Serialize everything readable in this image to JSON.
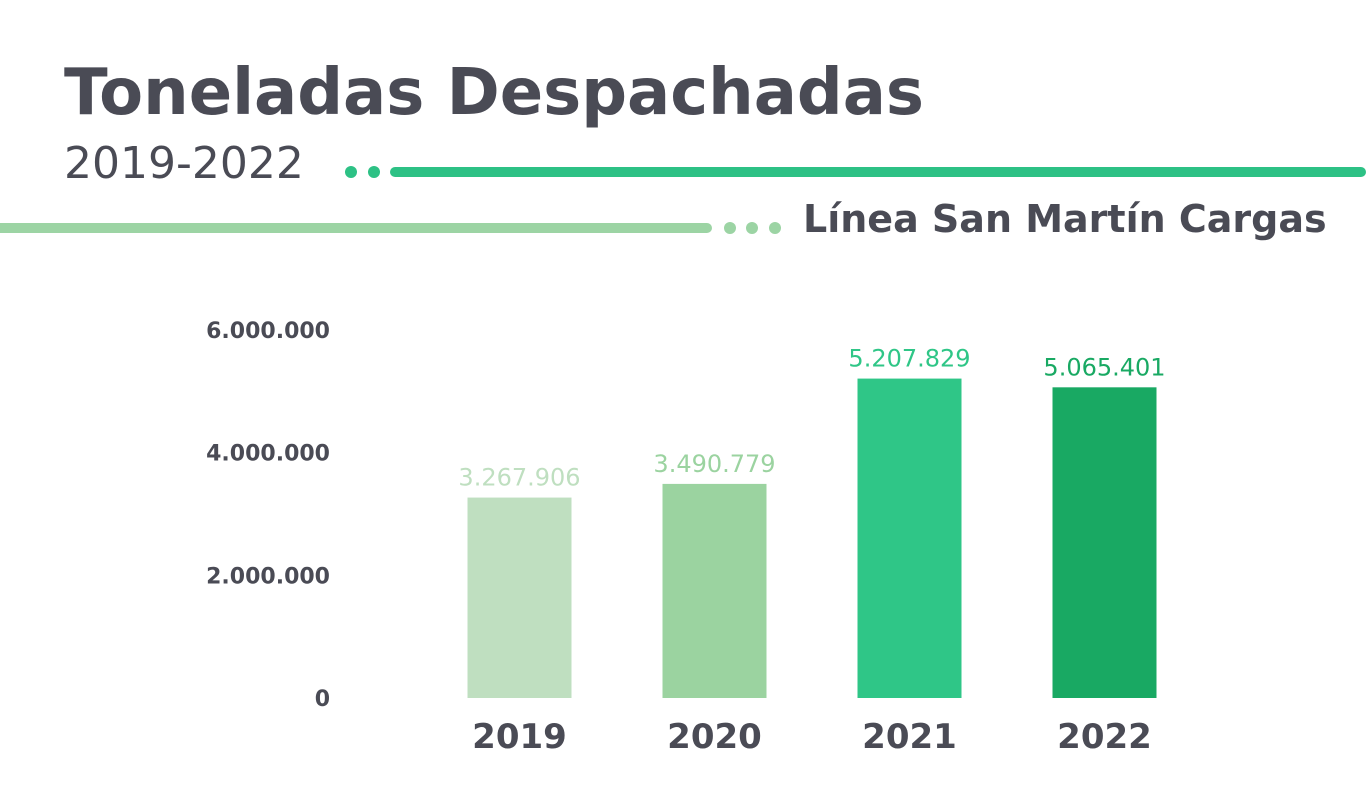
{
  "chart_data": {
    "type": "bar",
    "title": "Toneladas Despachadas",
    "subtitle": "2019-2022",
    "caption": "Línea San Martín Cargas",
    "categories": [
      "2019",
      "2020",
      "2021",
      "2022"
    ],
    "values": [
      3267906,
      3490779,
      5207829,
      5065401
    ],
    "value_labels": [
      "3.267.906",
      "3.490.779",
      "5.207.829",
      "5.065.401"
    ],
    "colors": [
      "#bfdfc0",
      "#9bd3a0",
      "#2fc687",
      "#19a963"
    ],
    "ylim": [
      0,
      6000000
    ],
    "yticks": [
      0,
      {
        "value": 2000000,
        "label": "2.000.000"
      },
      {
        "value": 4000000,
        "label": "4.000.000"
      },
      {
        "value": 6000000,
        "label": "6.000.000"
      }
    ],
    "grid": false
  }
}
